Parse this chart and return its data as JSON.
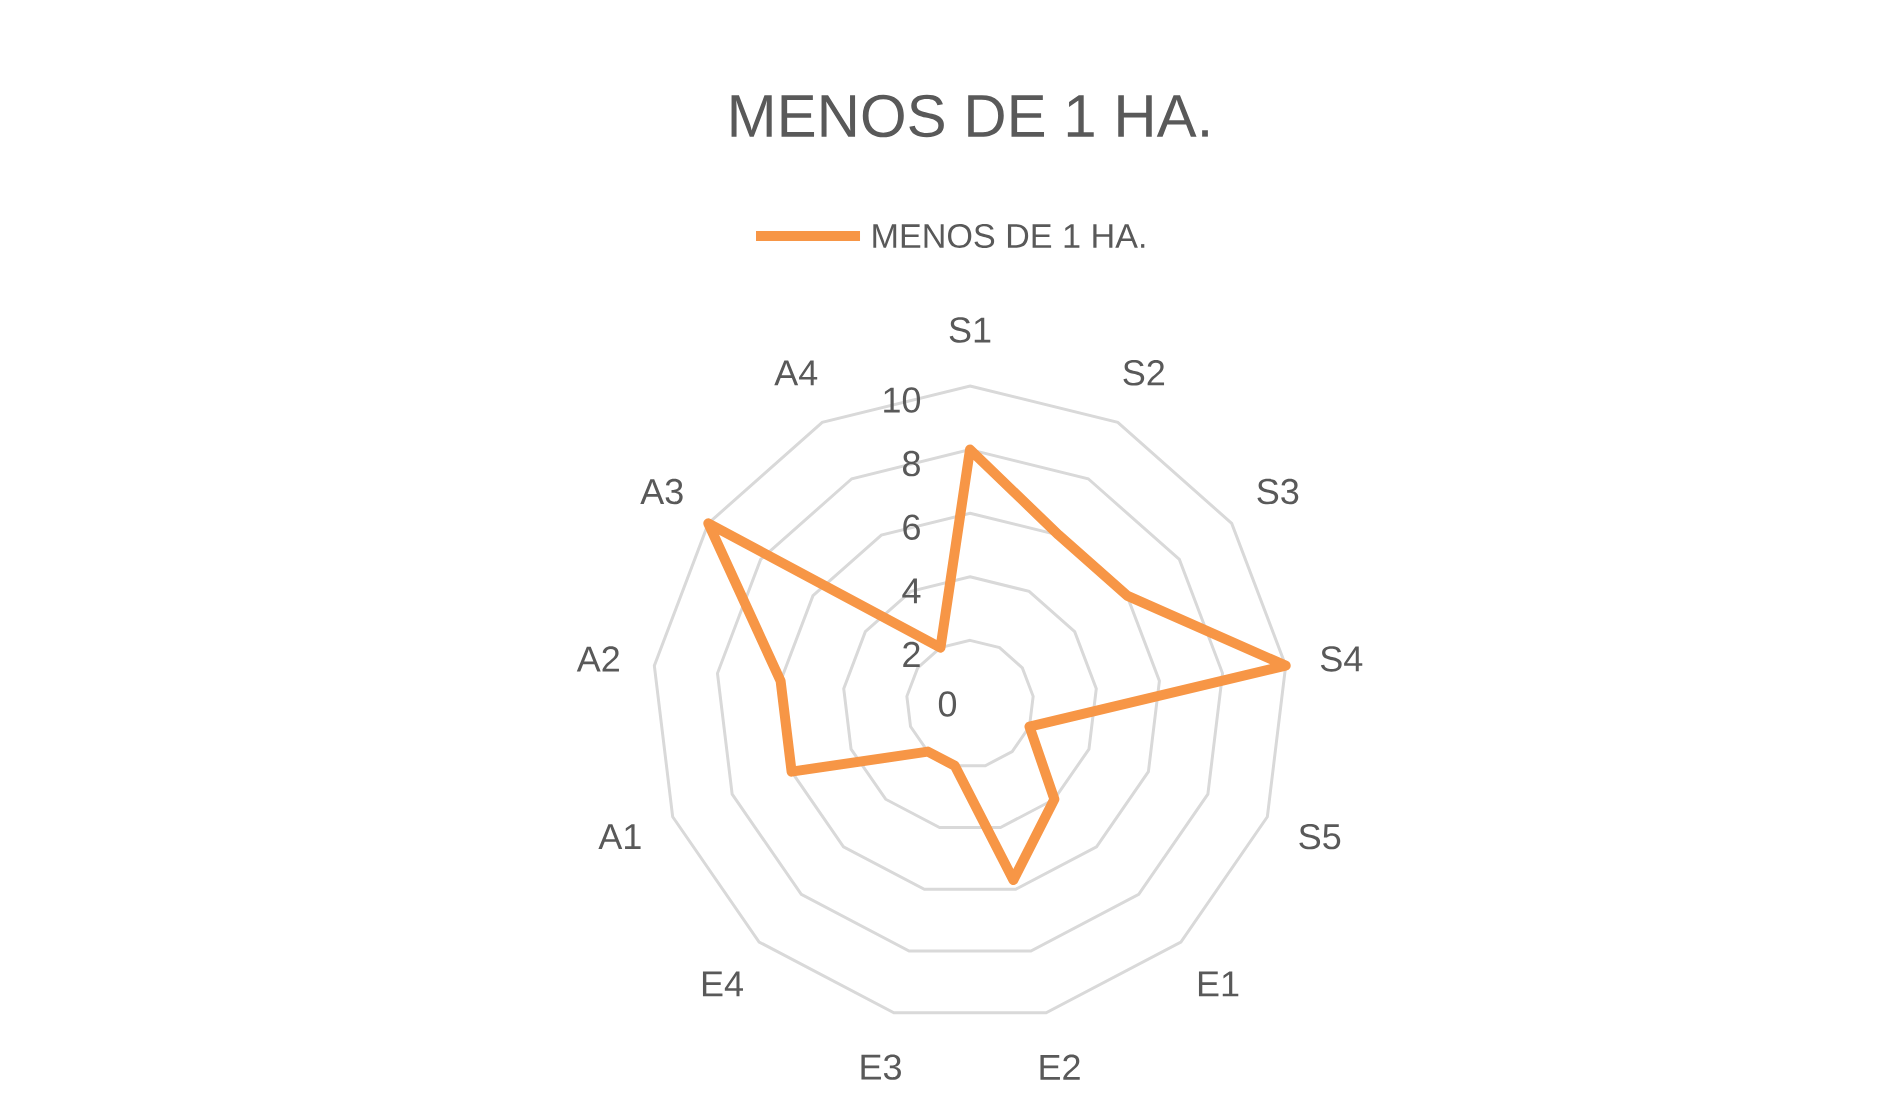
{
  "chart_data": {
    "type": "radar",
    "title": "MENOS DE 1 HA.",
    "categories": [
      "S1",
      "S2",
      "S3",
      "S4",
      "S5",
      "E1",
      "E2",
      "E3",
      "E4",
      "A1",
      "A2",
      "A3",
      "A4"
    ],
    "series": [
      {
        "name": "MENOS DE 1 HA.",
        "color": "#f79646",
        "values": [
          8,
          6,
          6,
          10,
          2,
          4,
          5.7,
          2,
          2,
          6,
          6,
          10,
          2
        ]
      }
    ],
    "ylim": [
      0,
      10
    ],
    "yticks": [
      0,
      2,
      4,
      6,
      8,
      10
    ],
    "grid": true,
    "legend": "top"
  }
}
